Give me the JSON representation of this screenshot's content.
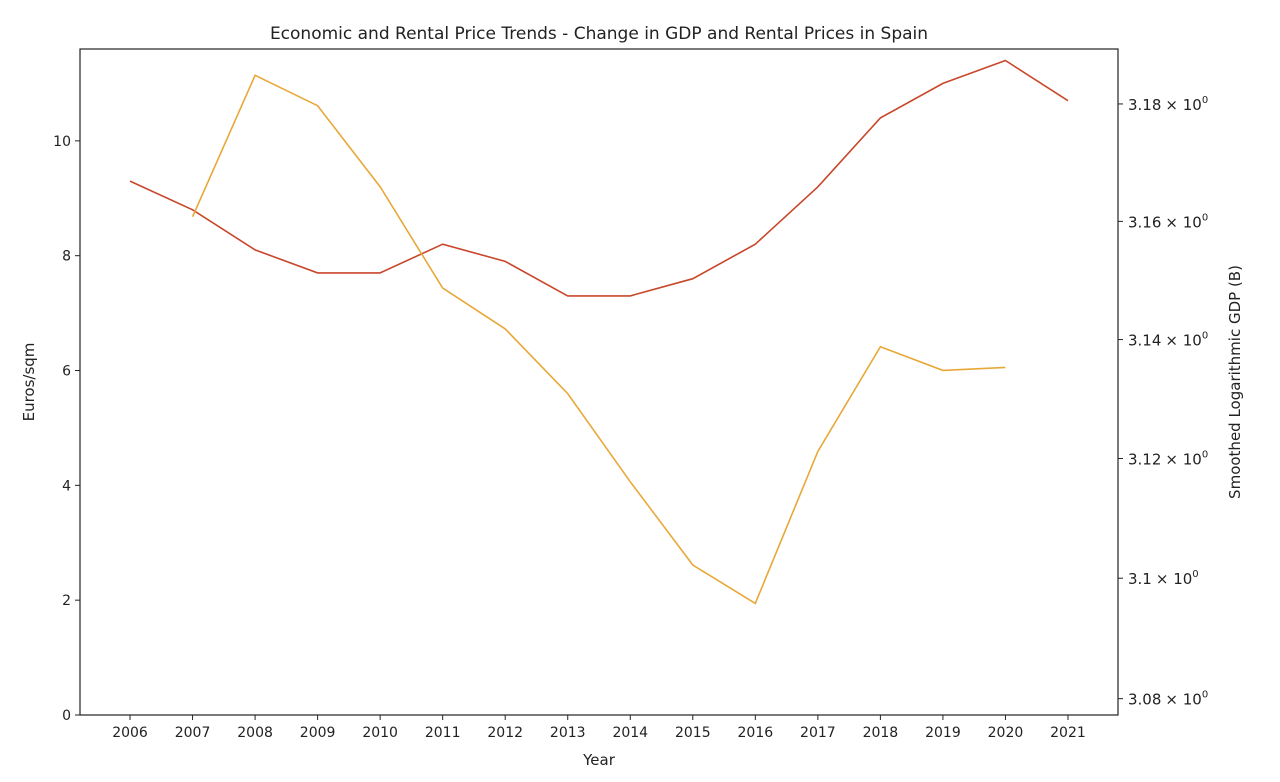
{
  "chart_data": {
    "type": "line",
    "title": "Economic and Rental Price Trends - Change in GDP and Rental Prices in Spain",
    "xlabel": "Year",
    "ylabel_left": "Euros/sqm",
    "ylabel_right": "Smoothed Logarithmic GDP (B)",
    "x": [
      2006,
      2007,
      2008,
      2009,
      2010,
      2011,
      2012,
      2013,
      2014,
      2015,
      2016,
      2017,
      2018,
      2019,
      2020,
      2021
    ],
    "xlim": [
      2005.2,
      2021.8
    ],
    "ylim_left": [
      0,
      11.6
    ],
    "left_ticks": [
      0,
      2,
      4,
      6,
      8,
      10
    ],
    "ylim_right": [
      3.0773,
      3.1894
    ],
    "right_scale": "log",
    "right_ticks": [
      3.08,
      3.1,
      3.12,
      3.14,
      3.16,
      3.18
    ],
    "right_tick_labels": [
      "3.08",
      "3.1",
      "3.12",
      "3.14",
      "3.16",
      "3.18"
    ],
    "right_tick_suffix": "× 10",
    "right_tick_exponent": "0",
    "grid": false,
    "colors": {
      "left": "#c8472b",
      "right": "#e8a838"
    },
    "series": [
      {
        "axis": "left",
        "values": [
          9.3,
          8.8,
          8.1,
          7.7,
          7.7,
          8.2,
          7.9,
          7.3,
          7.3,
          7.6,
          8.2,
          9.2,
          10.4,
          11.0,
          11.4,
          10.7
        ]
      },
      {
        "axis": "right",
        "values": [
          null,
          3.1608,
          3.1849,
          3.1797,
          3.1659,
          3.1487,
          3.1418,
          3.1309,
          3.1161,
          3.1022,
          3.0958,
          3.1212,
          3.1388,
          3.1348,
          3.1353,
          null
        ]
      }
    ]
  }
}
